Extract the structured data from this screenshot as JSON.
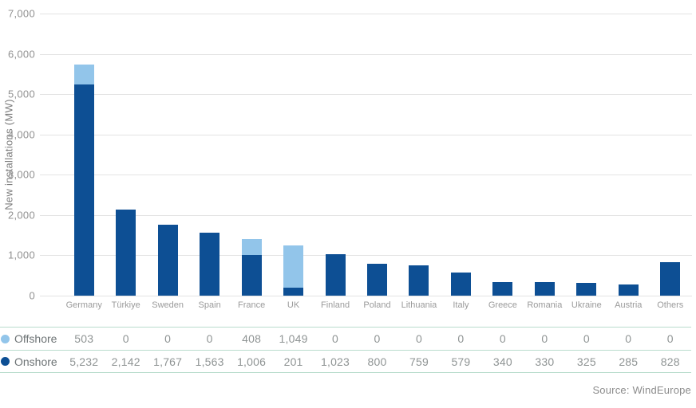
{
  "chart_data": {
    "type": "bar",
    "stacked": true,
    "title": "",
    "xlabel": "",
    "ylabel": "New installations (MW)",
    "ylim": [
      0,
      7000
    ],
    "ytick_step": 1000,
    "grid": true,
    "legend_position": "table-left",
    "categories": [
      "Germany",
      "Türkiye",
      "Sweden",
      "Spain",
      "France",
      "UK",
      "Finland",
      "Poland",
      "Lithuania",
      "Italy",
      "Greece",
      "Romania",
      "Ukraine",
      "Austria",
      "Others"
    ],
    "series": [
      {
        "name": "Offshore",
        "color": "#92c5ea",
        "values": [
          503,
          0,
          0,
          0,
          408,
          1049,
          0,
          0,
          0,
          0,
          0,
          0,
          0,
          0,
          0
        ]
      },
      {
        "name": "Onshore",
        "color": "#0d4f94",
        "values": [
          5232,
          2142,
          1767,
          1563,
          1006,
          201,
          1023,
          800,
          759,
          579,
          340,
          330,
          325,
          285,
          828
        ]
      }
    ]
  },
  "table": {
    "rows": [
      {
        "label": "Offshore",
        "dot_color": "#92c5ea",
        "values": [
          503,
          0,
          0,
          0,
          408,
          1049,
          0,
          0,
          0,
          0,
          0,
          0,
          0,
          0,
          0
        ]
      },
      {
        "label": "Onshore",
        "dot_color": "#0d4f94",
        "values": [
          5232,
          2142,
          1767,
          1563,
          1006,
          201,
          1023,
          800,
          759,
          579,
          340,
          330,
          325,
          285,
          828
        ]
      }
    ]
  },
  "source": "Source: WindEurope",
  "colors": {
    "offshore": "#92c5ea",
    "onshore": "#0d4f94",
    "gridline": "#e3e3e3",
    "table_border": "#b9dccd",
    "axis_text": "#919191"
  }
}
